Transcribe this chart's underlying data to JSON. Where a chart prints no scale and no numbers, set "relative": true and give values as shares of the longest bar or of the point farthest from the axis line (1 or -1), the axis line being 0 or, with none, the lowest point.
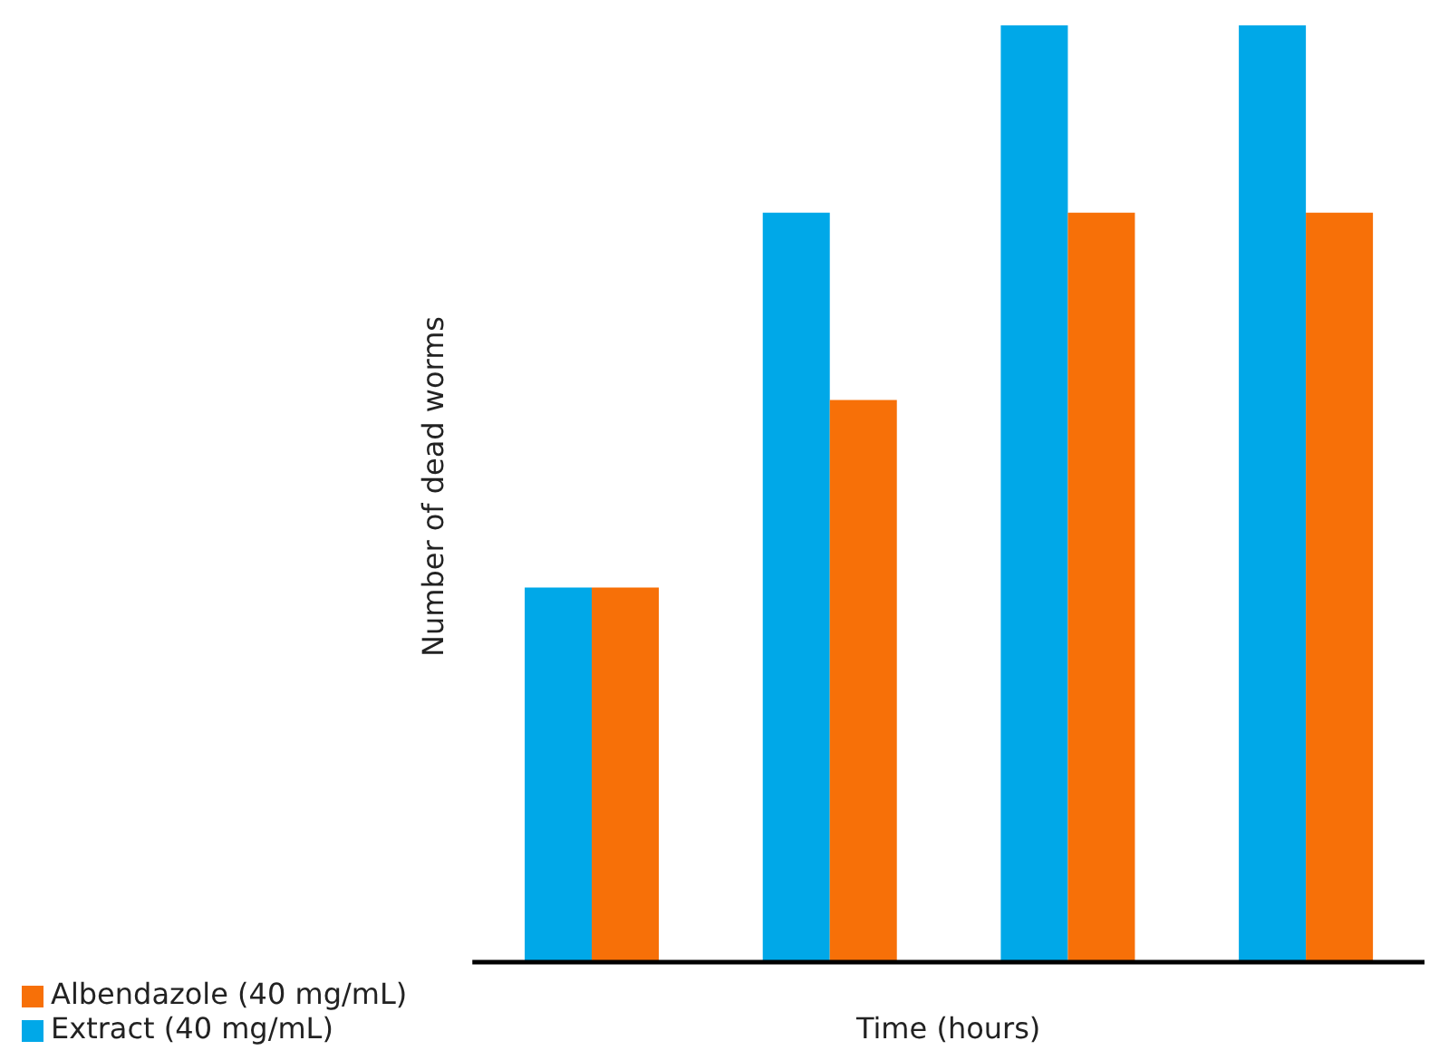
{
  "chart_data": {
    "type": "bar",
    "relative": true,
    "xlabel": "Time (hours)",
    "ylabel": "Number of dead worms",
    "categories": [
      null,
      null,
      null,
      null
    ],
    "series": [
      {
        "name": "Extract (40 mg/mL)",
        "color": "#00a8e8",
        "values": [
          0.4,
          0.8,
          1,
          1
        ]
      },
      {
        "name": "Albendazole (40 mg/mL)",
        "color": "#f77008",
        "values": [
          0.4,
          0.6,
          0.8,
          0.8
        ]
      }
    ],
    "legend": "bottom left",
    "grid": false
  }
}
